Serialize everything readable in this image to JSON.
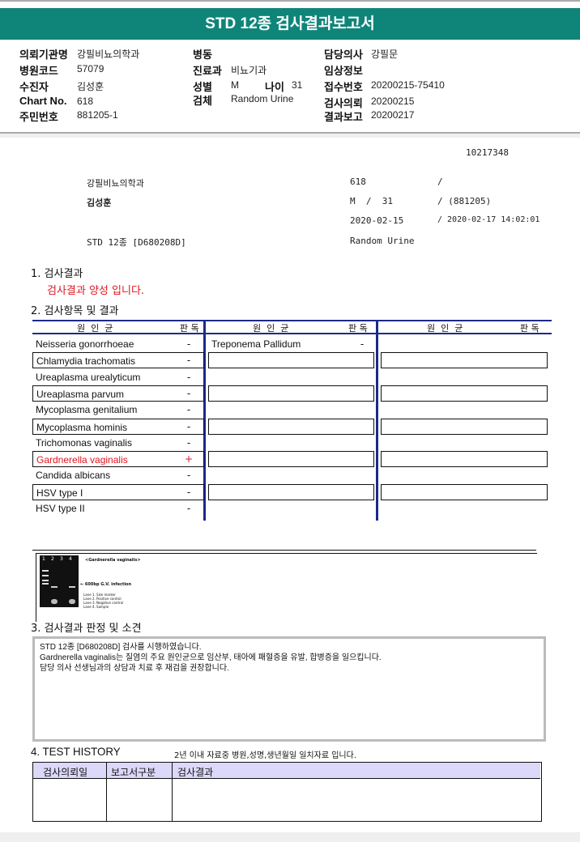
{
  "title": "STD 12종 검사결과보고서",
  "info": {
    "col1": [
      {
        "label": "의뢰기관명",
        "value": "강필비뇨의학과"
      },
      {
        "label": "병원코드",
        "value": "57079"
      },
      {
        "label": "수진자",
        "value": "김성훈"
      },
      {
        "label": "Chart No.",
        "value": "618"
      },
      {
        "label": "주민번호",
        "value": "881205-1"
      }
    ],
    "col2": [
      {
        "label": "병동",
        "value": ""
      },
      {
        "label": "진료과",
        "value": "비뇨기과"
      },
      {
        "label": "성별",
        "value": "M"
      },
      {
        "label": "검체",
        "value": "Random Urine"
      }
    ],
    "age_label": "나이",
    "age_value": "31",
    "col3": [
      {
        "label": "담당의사",
        "value": "강필문"
      },
      {
        "label": "임상정보",
        "value": ""
      },
      {
        "label": "접수번호",
        "value": "20200215-75410"
      },
      {
        "label": "검사의뢰",
        "value": "20200215"
      },
      {
        "label": "결과보고",
        "value": "20200217"
      }
    ]
  },
  "report": {
    "id": "10217348",
    "clinic": "강필비뇨의학과",
    "chart": "618",
    "slash1": "/",
    "name": "김성훈",
    "sex_age": "M  /  31",
    "birth": "/ (881205)",
    "req_date": "2020-02-15",
    "report_date": "/ 2020-02-17 14:02:01",
    "test": "STD 12종 [D680208D]",
    "specimen": "Random Urine"
  },
  "section1": {
    "title": "1. 검사결과",
    "message": "검사결과 양성 입니다."
  },
  "section2": {
    "title": "2. 검사항목 및 결과",
    "col_header": "원  인  균",
    "result_header": "판 독",
    "col1": [
      {
        "name": "Neisseria gonorrhoeae",
        "result": "-"
      },
      {
        "name": "Chlamydia trachomatis",
        "result": "-"
      },
      {
        "name": "Ureaplasma urealyticum",
        "result": "-"
      },
      {
        "name": "Ureaplasma parvum",
        "result": "-"
      },
      {
        "name": "Mycoplasma genitalium",
        "result": "-"
      },
      {
        "name": "Mycoplasma hominis",
        "result": "-"
      },
      {
        "name": "Trichomonas vaginalis",
        "result": "-"
      },
      {
        "name": "Gardnerella vaginalis",
        "result": "+",
        "positive": true
      },
      {
        "name": "Candida albicans",
        "result": "-"
      },
      {
        "name": "HSV type I",
        "result": "-"
      },
      {
        "name": "HSV type II",
        "result": "-"
      }
    ],
    "col2": [
      {
        "name": "Treponema Pallidum",
        "result": "-"
      }
    ],
    "positive_color": "#e0141e",
    "line_color": "#1c2a8a"
  },
  "gel": {
    "lanes": [
      "1",
      "2",
      "3",
      "4"
    ],
    "title": "<Gardnerella vaginalis>",
    "band_label": "← 600bp G.V. infection",
    "legend": [
      "Lane 1. Size marker",
      "Lane 2. Positive control",
      "Lane 3. Negative control",
      "Lane 4. Sample"
    ]
  },
  "section3": {
    "title": "3. 검사결과 판정 및 소견",
    "lines": [
      "STD 12종 [D680208D] 검사를 시행하였습니다.",
      "Gardnerella vaginalis는 질염의 주요 원인균으로 임산부, 태아에 패혈증을 유발, 합병증을 일으킵니다.",
      "담당 의사 선생님과의 상담과 치료 후 재검을 권장합니다."
    ]
  },
  "section4": {
    "title": "4. TEST HISTORY",
    "note": "2년 이내 자료중 병원,성명,생년월일 일치자료 입니다.",
    "headers": [
      "검사의뢰일",
      "보고서구분",
      "검사결과"
    ]
  }
}
